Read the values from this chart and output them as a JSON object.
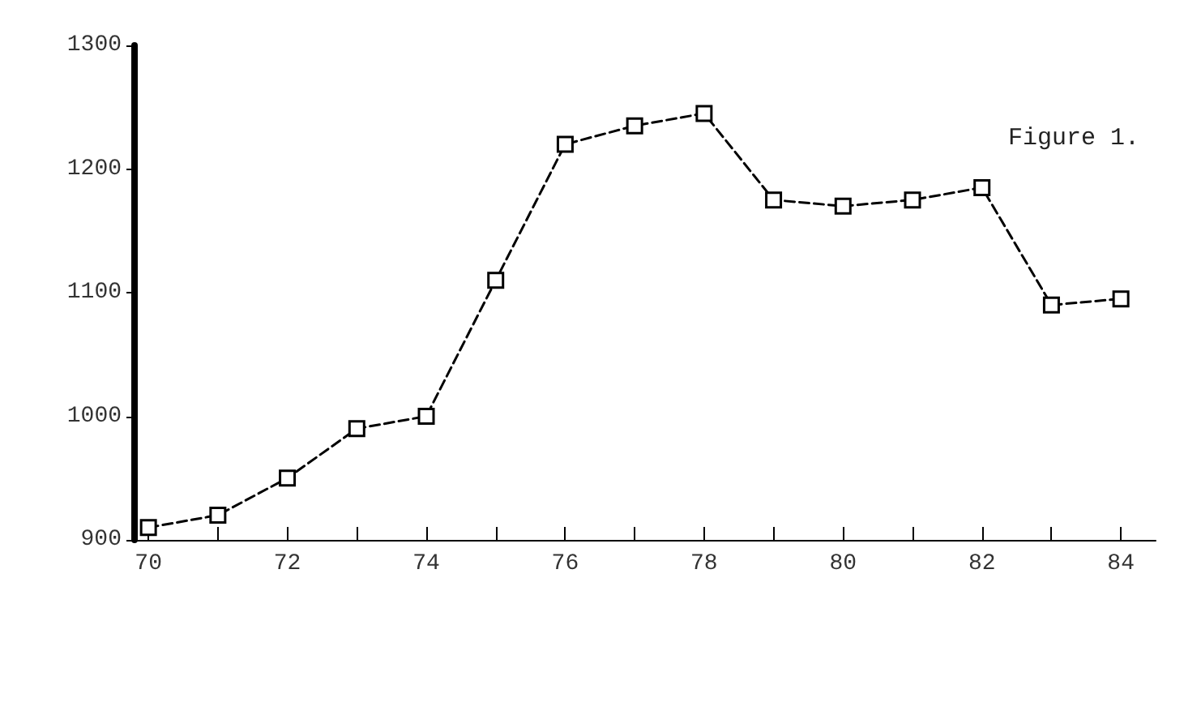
{
  "chart_data": {
    "type": "line",
    "x": [
      1970,
      1971,
      1972,
      1973,
      1974,
      1975,
      1976,
      1977,
      1978,
      1979,
      1980,
      1981,
      1982,
      1983,
      1984
    ],
    "series": [
      {
        "color": "#000000",
        "values": [
          910,
          920,
          950,
          990,
          1000,
          1110,
          1220,
          1235,
          1245,
          1175,
          1170,
          1175,
          1185,
          1090,
          1095
        ]
      }
    ],
    "xlim": [
      1969.8,
      1984.5
    ],
    "xticks": [
      {
        "value": 1970,
        "label": "70"
      },
      {
        "value": 1971,
        "label": null
      },
      {
        "value": 1972,
        "label": "72"
      },
      {
        "value": 1973,
        "label": null
      },
      {
        "value": 1974,
        "label": "74"
      },
      {
        "value": 1975,
        "label": null
      },
      {
        "value": 1976,
        "label": "76"
      },
      {
        "value": 1977,
        "label": null
      },
      {
        "value": 1978,
        "label": "78"
      },
      {
        "value": 1979,
        "label": null
      },
      {
        "value": 1980,
        "label": "80"
      },
      {
        "value": 1981,
        "label": null
      },
      {
        "value": 1982,
        "label": "82"
      },
      {
        "value": 1983,
        "label": null
      },
      {
        "value": 1984,
        "label": "84"
      }
    ],
    "ylim": [
      900,
      1300
    ],
    "yticks": [
      900,
      1000,
      1100,
      1200,
      1300
    ],
    "annotations": [
      "Figure 1."
    ],
    "marker": "square",
    "line_style": "dashed",
    "grid": false
  }
}
